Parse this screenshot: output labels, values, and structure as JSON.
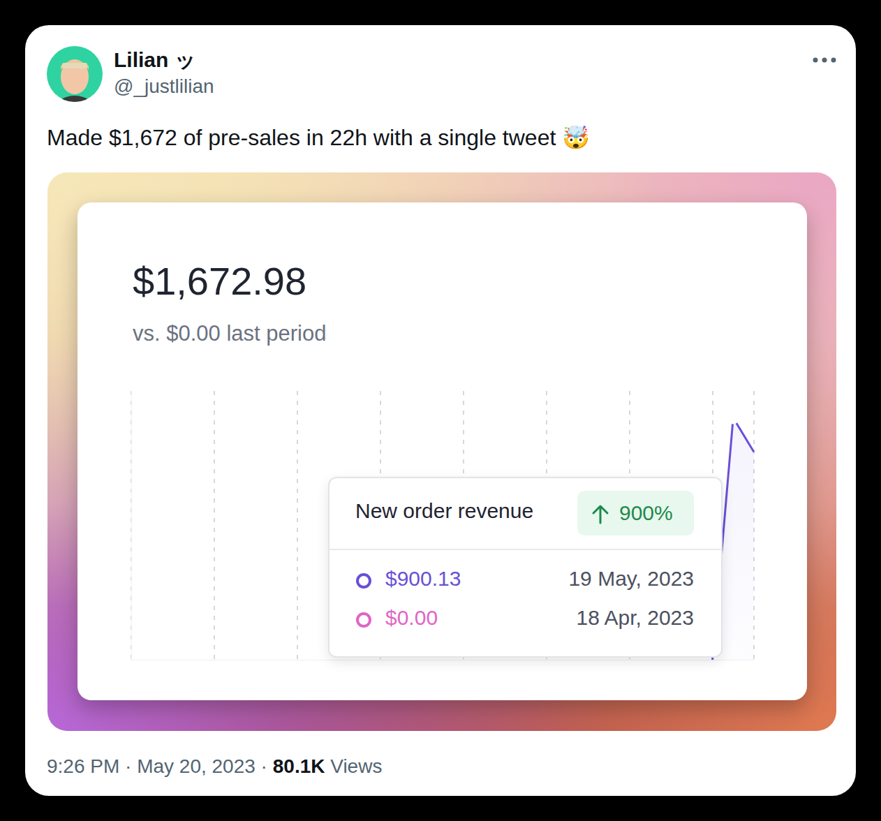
{
  "tweet": {
    "name": "Lilian ッ",
    "handle": "@_justlilian",
    "text": "Made $1,672 of pre-sales in 22h with a single tweet 🤯",
    "time": "9:26 PM",
    "date": "May 20, 2023",
    "views": "80.1K",
    "views_label": "Views",
    "separator": "·"
  },
  "card": {
    "total": "$1,672.98",
    "comparison": "vs. $0.00 last period",
    "tooltip": {
      "title": "New order revenue",
      "change": "900%",
      "rows": [
        {
          "value": "$900.13",
          "date": "19 May, 2023",
          "color": "#6a4fd6"
        },
        {
          "value": "$0.00",
          "date": "18 Apr, 2023",
          "color": "#e065c6"
        }
      ]
    }
  },
  "chart_data": {
    "type": "line",
    "x": [
      7,
      7.25,
      7.5
    ],
    "values": [
      0,
      900.13,
      772.85
    ],
    "color": "#6b4fd8",
    "xlim": [
      0,
      7.5
    ],
    "xticks": [
      0,
      1,
      2,
      3,
      4,
      5,
      6,
      7
    ],
    "ylim": [
      0,
      1000
    ],
    "grid": true,
    "tick_labels": false,
    "marker": "circle"
  }
}
